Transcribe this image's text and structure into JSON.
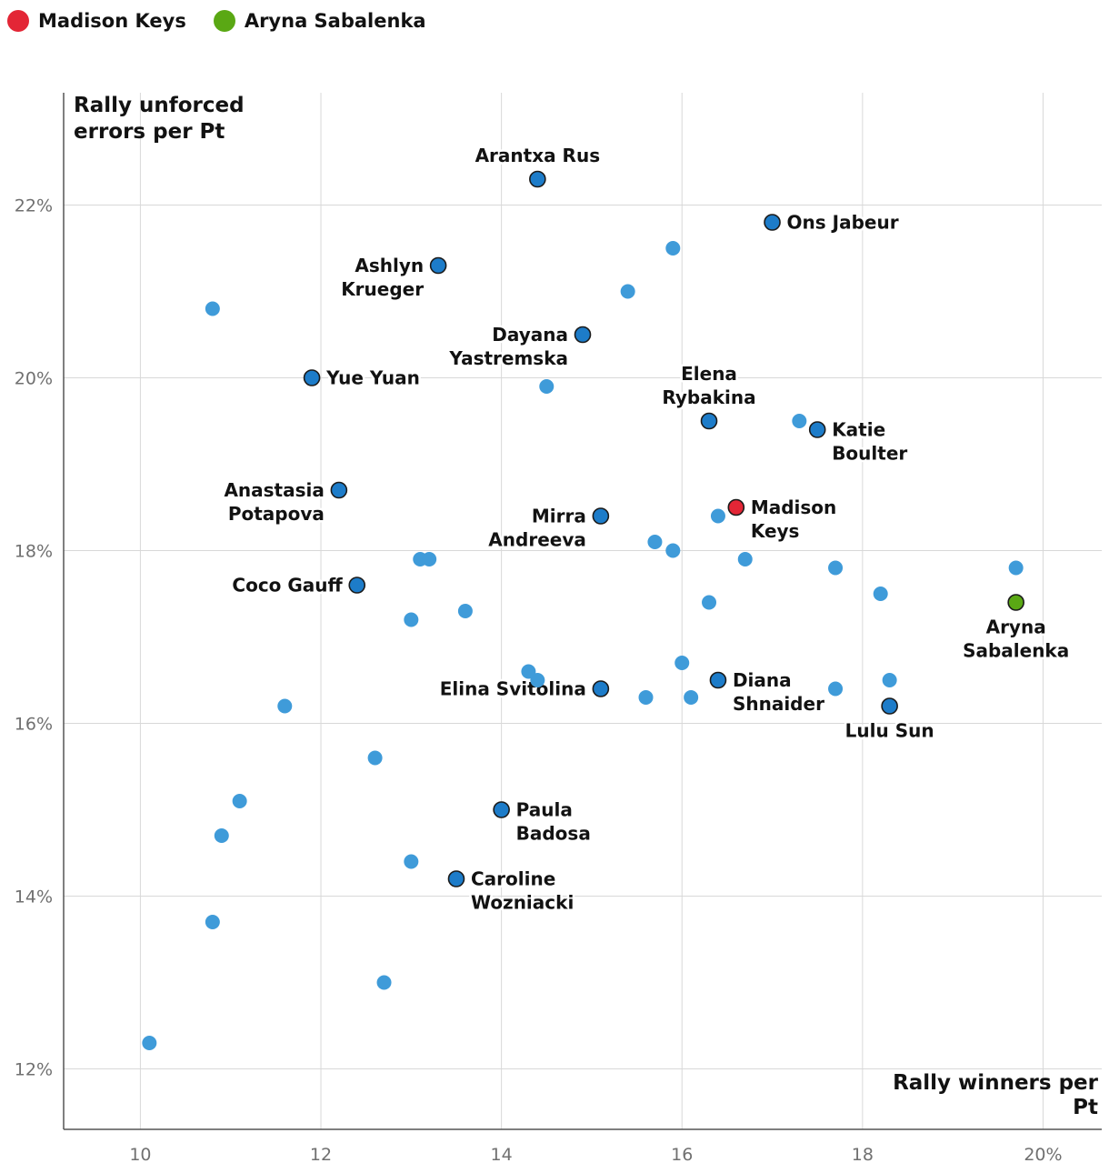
{
  "legend": [
    {
      "label": "Madison Keys",
      "color": "#e32636"
    },
    {
      "label": "Aryna Sabalenka",
      "color": "#5aa814"
    }
  ],
  "colors": {
    "default_point": "#3f9bd9",
    "labeled_point": "#1d7cc9",
    "point_stroke": "#1b1b1b",
    "grid": "#d8d8d8",
    "axis": "#555555"
  },
  "chart_data": {
    "type": "scatter",
    "title": "",
    "xlabel": "Rally winners per Pt",
    "ylabel": "Rally unforced errors per Pt",
    "xlim": [
      9.15,
      20.65
    ],
    "ylim": [
      11.3,
      23.3
    ],
    "xticks": [
      {
        "value": 10,
        "label": "10"
      },
      {
        "value": 12,
        "label": "12"
      },
      {
        "value": 14,
        "label": "14"
      },
      {
        "value": 16,
        "label": "16"
      },
      {
        "value": 18,
        "label": "18"
      },
      {
        "value": 20,
        "label": "20%"
      }
    ],
    "yticks": [
      {
        "value": 12,
        "label": "12%"
      },
      {
        "value": 14,
        "label": "14%"
      },
      {
        "value": 16,
        "label": "16%"
      },
      {
        "value": 18,
        "label": "18%"
      },
      {
        "value": 20,
        "label": "20%"
      },
      {
        "value": 22,
        "label": "22%"
      }
    ],
    "grid": true,
    "points": [
      {
        "x": 10.8,
        "y": 20.8
      },
      {
        "x": 15.9,
        "y": 21.5
      },
      {
        "x": 15.4,
        "y": 21.0
      },
      {
        "x": 14.5,
        "y": 19.9
      },
      {
        "x": 17.3,
        "y": 19.5
      },
      {
        "x": 16.4,
        "y": 18.4
      },
      {
        "x": 13.1,
        "y": 17.9
      },
      {
        "x": 13.2,
        "y": 17.9
      },
      {
        "x": 15.7,
        "y": 18.1
      },
      {
        "x": 15.9,
        "y": 18.0
      },
      {
        "x": 16.7,
        "y": 17.9
      },
      {
        "x": 17.7,
        "y": 17.8
      },
      {
        "x": 19.7,
        "y": 17.8
      },
      {
        "x": 18.2,
        "y": 17.5
      },
      {
        "x": 16.3,
        "y": 17.4
      },
      {
        "x": 13.6,
        "y": 17.3
      },
      {
        "x": 13.0,
        "y": 17.2
      },
      {
        "x": 16.0,
        "y": 16.7
      },
      {
        "x": 14.4,
        "y": 16.5
      },
      {
        "x": 14.3,
        "y": 16.6
      },
      {
        "x": 15.6,
        "y": 16.3
      },
      {
        "x": 16.1,
        "y": 16.3
      },
      {
        "x": 17.7,
        "y": 16.4
      },
      {
        "x": 18.3,
        "y": 16.5
      },
      {
        "x": 11.6,
        "y": 16.2
      },
      {
        "x": 12.6,
        "y": 15.6
      },
      {
        "x": 11.1,
        "y": 15.1
      },
      {
        "x": 10.9,
        "y": 14.7
      },
      {
        "x": 13.0,
        "y": 14.4
      },
      {
        "x": 10.8,
        "y": 13.7
      },
      {
        "x": 12.7,
        "y": 13.0
      },
      {
        "x": 10.1,
        "y": 12.3
      }
    ],
    "labeled_points": [
      {
        "name": "Arantxa Rus",
        "x": 14.4,
        "y": 22.3,
        "label_pos": "above"
      },
      {
        "name": "Ons Jabeur",
        "x": 17.0,
        "y": 21.8,
        "label_pos": "right"
      },
      {
        "name": "Ashlyn Krueger",
        "x": 13.3,
        "y": 21.3,
        "label_pos": "left"
      },
      {
        "name": "Dayana Yastremska",
        "x": 14.9,
        "y": 20.5,
        "label_pos": "left"
      },
      {
        "name": "Yue Yuan",
        "x": 11.9,
        "y": 20.0,
        "label_pos": "right"
      },
      {
        "name": "Elena Rybakina",
        "x": 16.3,
        "y": 19.5,
        "label_pos": "above"
      },
      {
        "name": "Katie Boulter",
        "x": 17.5,
        "y": 19.4,
        "label_pos": "right"
      },
      {
        "name": "Anastasia Potapova",
        "x": 12.2,
        "y": 18.7,
        "label_pos": "left"
      },
      {
        "name": "Mirra Andreeva",
        "x": 15.1,
        "y": 18.4,
        "label_pos": "left"
      },
      {
        "name": "Madison Keys",
        "x": 16.6,
        "y": 18.5,
        "label_pos": "right",
        "highlight": "keys"
      },
      {
        "name": "Coco Gauff",
        "x": 12.4,
        "y": 17.6,
        "label_pos": "left"
      },
      {
        "name": "Aryna Sabalenka",
        "x": 19.7,
        "y": 17.4,
        "label_pos": "below",
        "highlight": "sabalenka"
      },
      {
        "name": "Elina Svitolina",
        "x": 15.1,
        "y": 16.4,
        "label_pos": "left"
      },
      {
        "name": "Diana Shnaider",
        "x": 16.4,
        "y": 16.5,
        "label_pos": "right"
      },
      {
        "name": "Lulu Sun",
        "x": 18.3,
        "y": 16.2,
        "label_pos": "below"
      },
      {
        "name": "Paula Badosa",
        "x": 14.0,
        "y": 15.0,
        "label_pos": "right"
      },
      {
        "name": "Caroline Wozniacki",
        "x": 13.5,
        "y": 14.2,
        "label_pos": "right"
      }
    ]
  }
}
